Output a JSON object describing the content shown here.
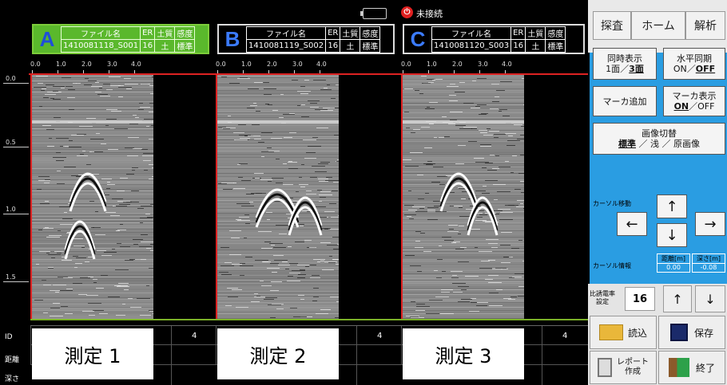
{
  "status": {
    "connection": "未接続",
    "conn_icon": "power-icon"
  },
  "headers": [
    {
      "letter": "A",
      "col_file": "ファイル名",
      "col_er": "ER",
      "col_soil": "土質",
      "col_sens": "感度",
      "file": "1410081118_S001",
      "er": "16",
      "soil": "土",
      "sens": "標準",
      "active": true
    },
    {
      "letter": "B",
      "col_file": "ファイル名",
      "col_er": "ER",
      "col_soil": "土質",
      "col_sens": "感度",
      "file": "1410081119_S002",
      "er": "16",
      "soil": "土",
      "sens": "標準",
      "active": false
    },
    {
      "letter": "C",
      "col_file": "ファイル名",
      "col_er": "ER",
      "col_soil": "土質",
      "col_sens": "感度",
      "file": "1410081120_S003",
      "er": "16",
      "soil": "土",
      "sens": "標準",
      "active": false
    }
  ],
  "x_scale": [
    "0.0",
    "1.0",
    "2.0",
    "3.0",
    "4.0"
  ],
  "depth_scale": [
    "0.0",
    "0.5",
    "1.0",
    "1.5"
  ],
  "table": {
    "row_id": "ID",
    "row_distance": "距離",
    "row_depth": "深さ",
    "id_values": [
      "4",
      "4",
      "4"
    ]
  },
  "measurements": [
    "測定 1",
    "測定 2",
    "測定 3"
  ],
  "tabs": {
    "survey": "探査",
    "home": "ホーム",
    "analysis": "解析"
  },
  "controls": {
    "simul_line1": "同時表示",
    "simul_line2_a": "1面／",
    "simul_line2_b": "3面",
    "hsync_line1": "水平同期",
    "hsync_line2_a": "ON／",
    "hsync_line2_b": "OFF",
    "marker_add": "マーカ追加",
    "marker_show_line1": "マーカ表示",
    "marker_show_line2_a": "ON",
    "marker_show_line2_b": "／OFF",
    "image_switch_title": "画像切替",
    "image_switch_opt1": "標準",
    "image_switch_rest": " ／ 浅 ／ 原画像",
    "cursor_move": "カーソル移動",
    "cursor_info": "カーソル情報",
    "distance_label": "距離[m]",
    "depth_label": "深さ[m]",
    "distance_value": "0.00",
    "depth_value": "-0.08",
    "arrow_up": "↑",
    "arrow_down": "↓",
    "arrow_left": "←",
    "arrow_right": "→"
  },
  "lower": {
    "epsilon_label_1": "比誘電率",
    "epsilon_label_2": "設定",
    "epsilon_value": "16",
    "up": "↑",
    "down": "↓",
    "load": "読込",
    "save": "保存",
    "report_1": "レポート",
    "report_2": "作成",
    "exit": "終了"
  },
  "colors": {
    "active_header": "#5ab82c",
    "panel_blue": "#2a9de2",
    "trace_red": "#d22222",
    "ground_green": "#7ab028"
  }
}
